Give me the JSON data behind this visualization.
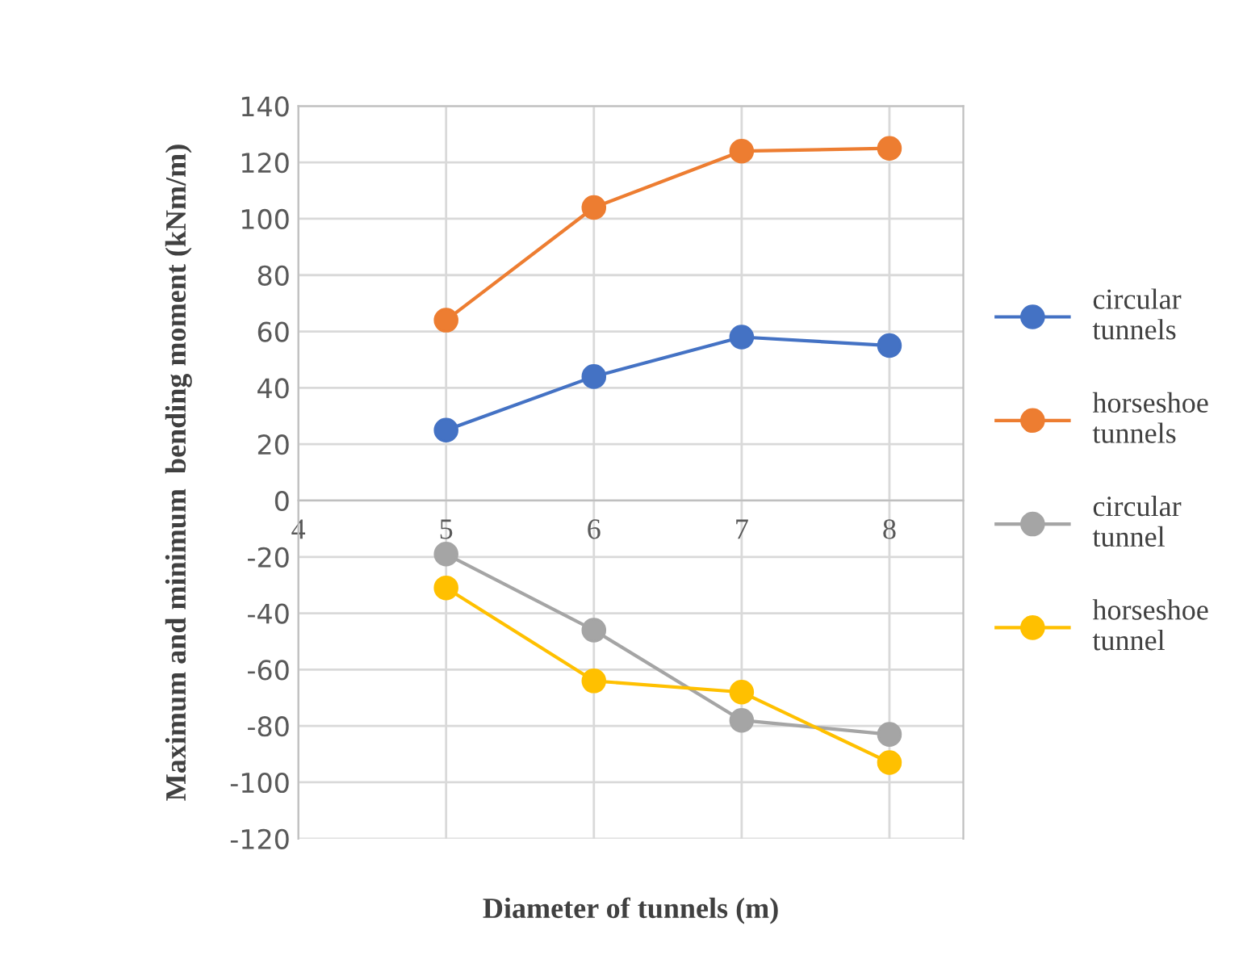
{
  "chart_data": {
    "type": "line",
    "xlabel": "Diameter of tunnels (m)",
    "ylabel": "Maximum and minimum  bending moment (kNm/m)",
    "x": [
      5,
      6,
      7,
      8
    ],
    "series": [
      {
        "name": "circular tunnels",
        "color": "#4472c4",
        "values": [
          25,
          44,
          58,
          55
        ]
      },
      {
        "name": "horseshoe tunnels",
        "color": "#ed7d31",
        "values": [
          64,
          104,
          124,
          125
        ]
      },
      {
        "name": "circular tunnel",
        "color": "#a5a5a5",
        "values": [
          -19,
          -46,
          -78,
          -83
        ]
      },
      {
        "name": "horseshoe tunnel",
        "color": "#ffc000",
        "values": [
          -31,
          -64,
          -68,
          -93
        ]
      }
    ],
    "xlim": [
      4,
      8.5
    ],
    "xticks": [
      4,
      5,
      6,
      7,
      8
    ],
    "ylim": [
      -120,
      140
    ],
    "yticks": [
      -120,
      -100,
      -80,
      -60,
      -40,
      -20,
      0,
      20,
      40,
      60,
      80,
      100,
      120,
      140
    ],
    "grid": true,
    "legend": "right",
    "marker": "circle",
    "line_style": "solid"
  }
}
